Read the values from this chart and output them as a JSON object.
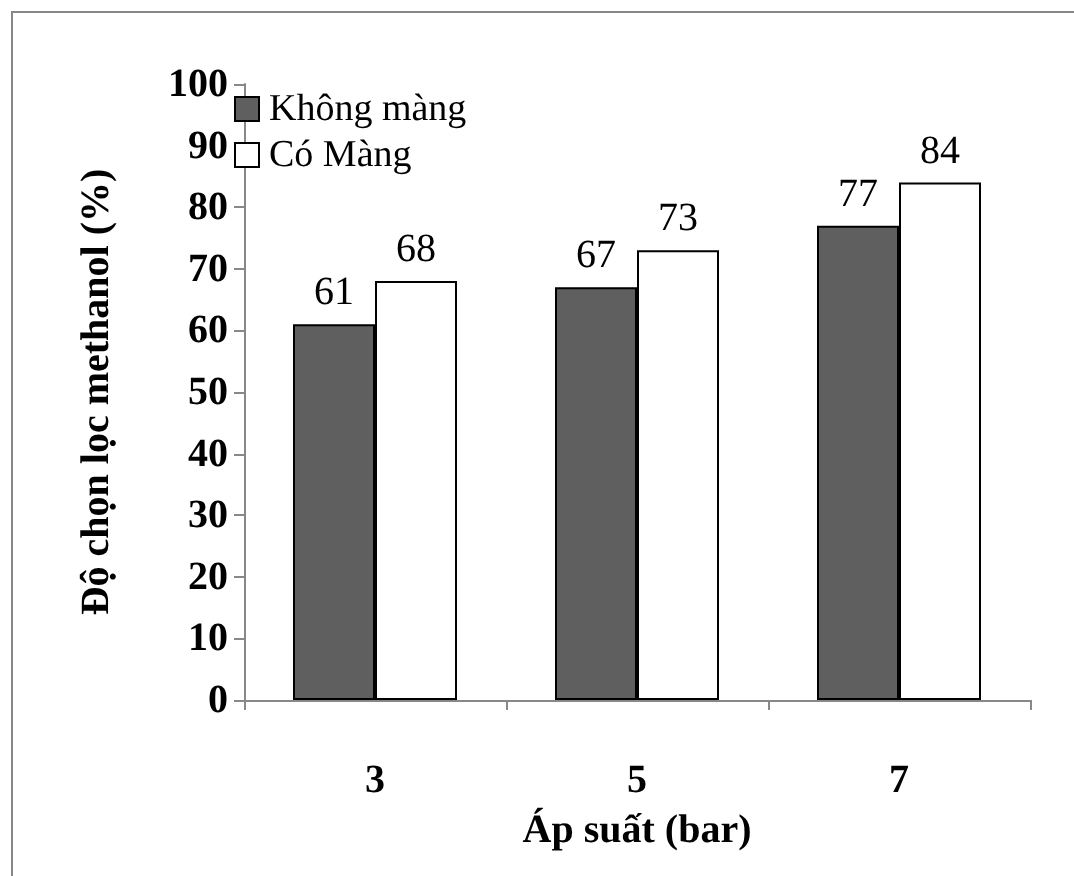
{
  "chart_data": {
    "type": "bar",
    "xlabel": "Áp suất (bar)",
    "ylabel": "Độ chọn lọc methanol (%)",
    "categories": [
      "3",
      "5",
      "7"
    ],
    "series": [
      {
        "name": "Không màng",
        "color": "#5f5f5f",
        "values": [
          61,
          67,
          77
        ]
      },
      {
        "name": "Có Màng",
        "color": "#ffffff",
        "values": [
          68,
          73,
          84
        ]
      }
    ],
    "ylim": [
      0,
      100
    ],
    "yticks": [
      0,
      10,
      20,
      30,
      40,
      50,
      60,
      70,
      80,
      90,
      100
    ],
    "grid": false,
    "legend": "top left",
    "data_labels": true
  }
}
